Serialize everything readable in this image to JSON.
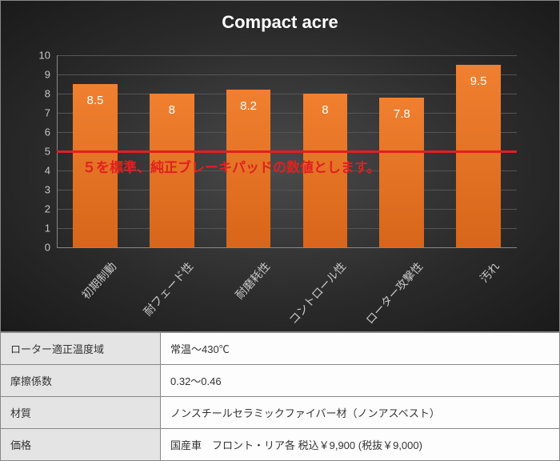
{
  "chart": {
    "title": "Compact  acre",
    "type": "bar",
    "ylim": [
      0,
      10
    ],
    "ytick_step": 1,
    "categories": [
      "初期制動",
      "耐フェード性",
      "耐磨耗性",
      "コントロール性",
      "ローター攻撃性",
      "汚れ"
    ],
    "values": [
      8.5,
      8,
      8.2,
      8,
      7.8,
      9.5
    ],
    "value_labels": [
      "8.5",
      "8",
      "8.2",
      "8",
      "7.8",
      "9.5"
    ],
    "bar_color": "#e87424",
    "background": "#303030",
    "grid_color": "#555555",
    "tick_color": "#c8c8c8",
    "bar_width_ratio": 0.58,
    "baseline_value": 5,
    "baseline_color": "#e02020",
    "baseline_text": "５を標準、純正ブレーキパッドの数値とします。"
  },
  "table": {
    "rows": [
      {
        "key": "ローター適正温度域",
        "val": "常温～430℃"
      },
      {
        "key": "摩擦係数",
        "val": "0.32～0.46"
      },
      {
        "key": "材質",
        "val": "ノンスチールセラミックファイバー材（ノンアスベスト）"
      },
      {
        "key": "価格",
        "val": "国産車　フロント・リア各 税込￥9,900 (税抜￥9,000)"
      }
    ]
  }
}
